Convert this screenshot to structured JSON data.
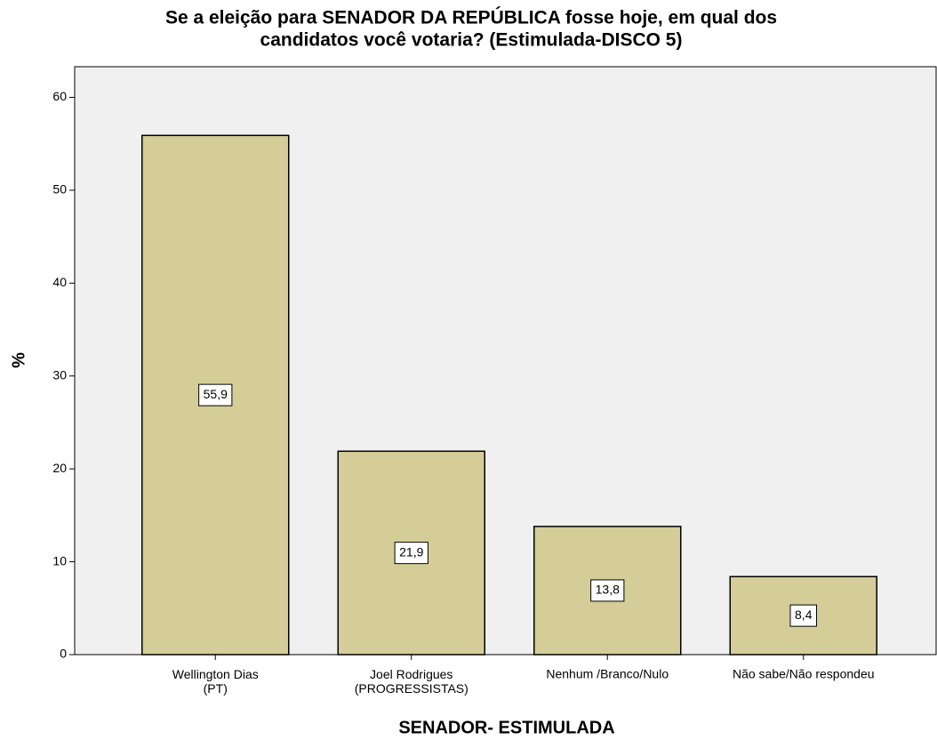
{
  "chart_data": {
    "type": "bar",
    "title": [
      "Se a eleição para SENADOR  DA REPÚBLICA  fosse hoje, em qual dos",
      "candidatos você votaria? (Estimulada-DISCO 5)"
    ],
    "x_label": "SENADOR- ESTIMULADA",
    "y_label": "%",
    "categories": [
      "Wellington Dias (PT)",
      "Joel Rodrigues (PROGRESSISTAS)",
      "Nenhum /Branco/Nulo",
      "Não sabe/Não respondeu"
    ],
    "values": [
      55.9,
      21.9,
      13.8,
      8.4
    ],
    "value_labels": [
      "55,9",
      "21,9",
      "13,8",
      "8,4"
    ],
    "color": "#d4cd97",
    "ylim": [
      0,
      63.3
    ],
    "yticks": [
      0,
      10,
      20,
      30,
      40,
      50,
      60
    ],
    "grid": false
  }
}
